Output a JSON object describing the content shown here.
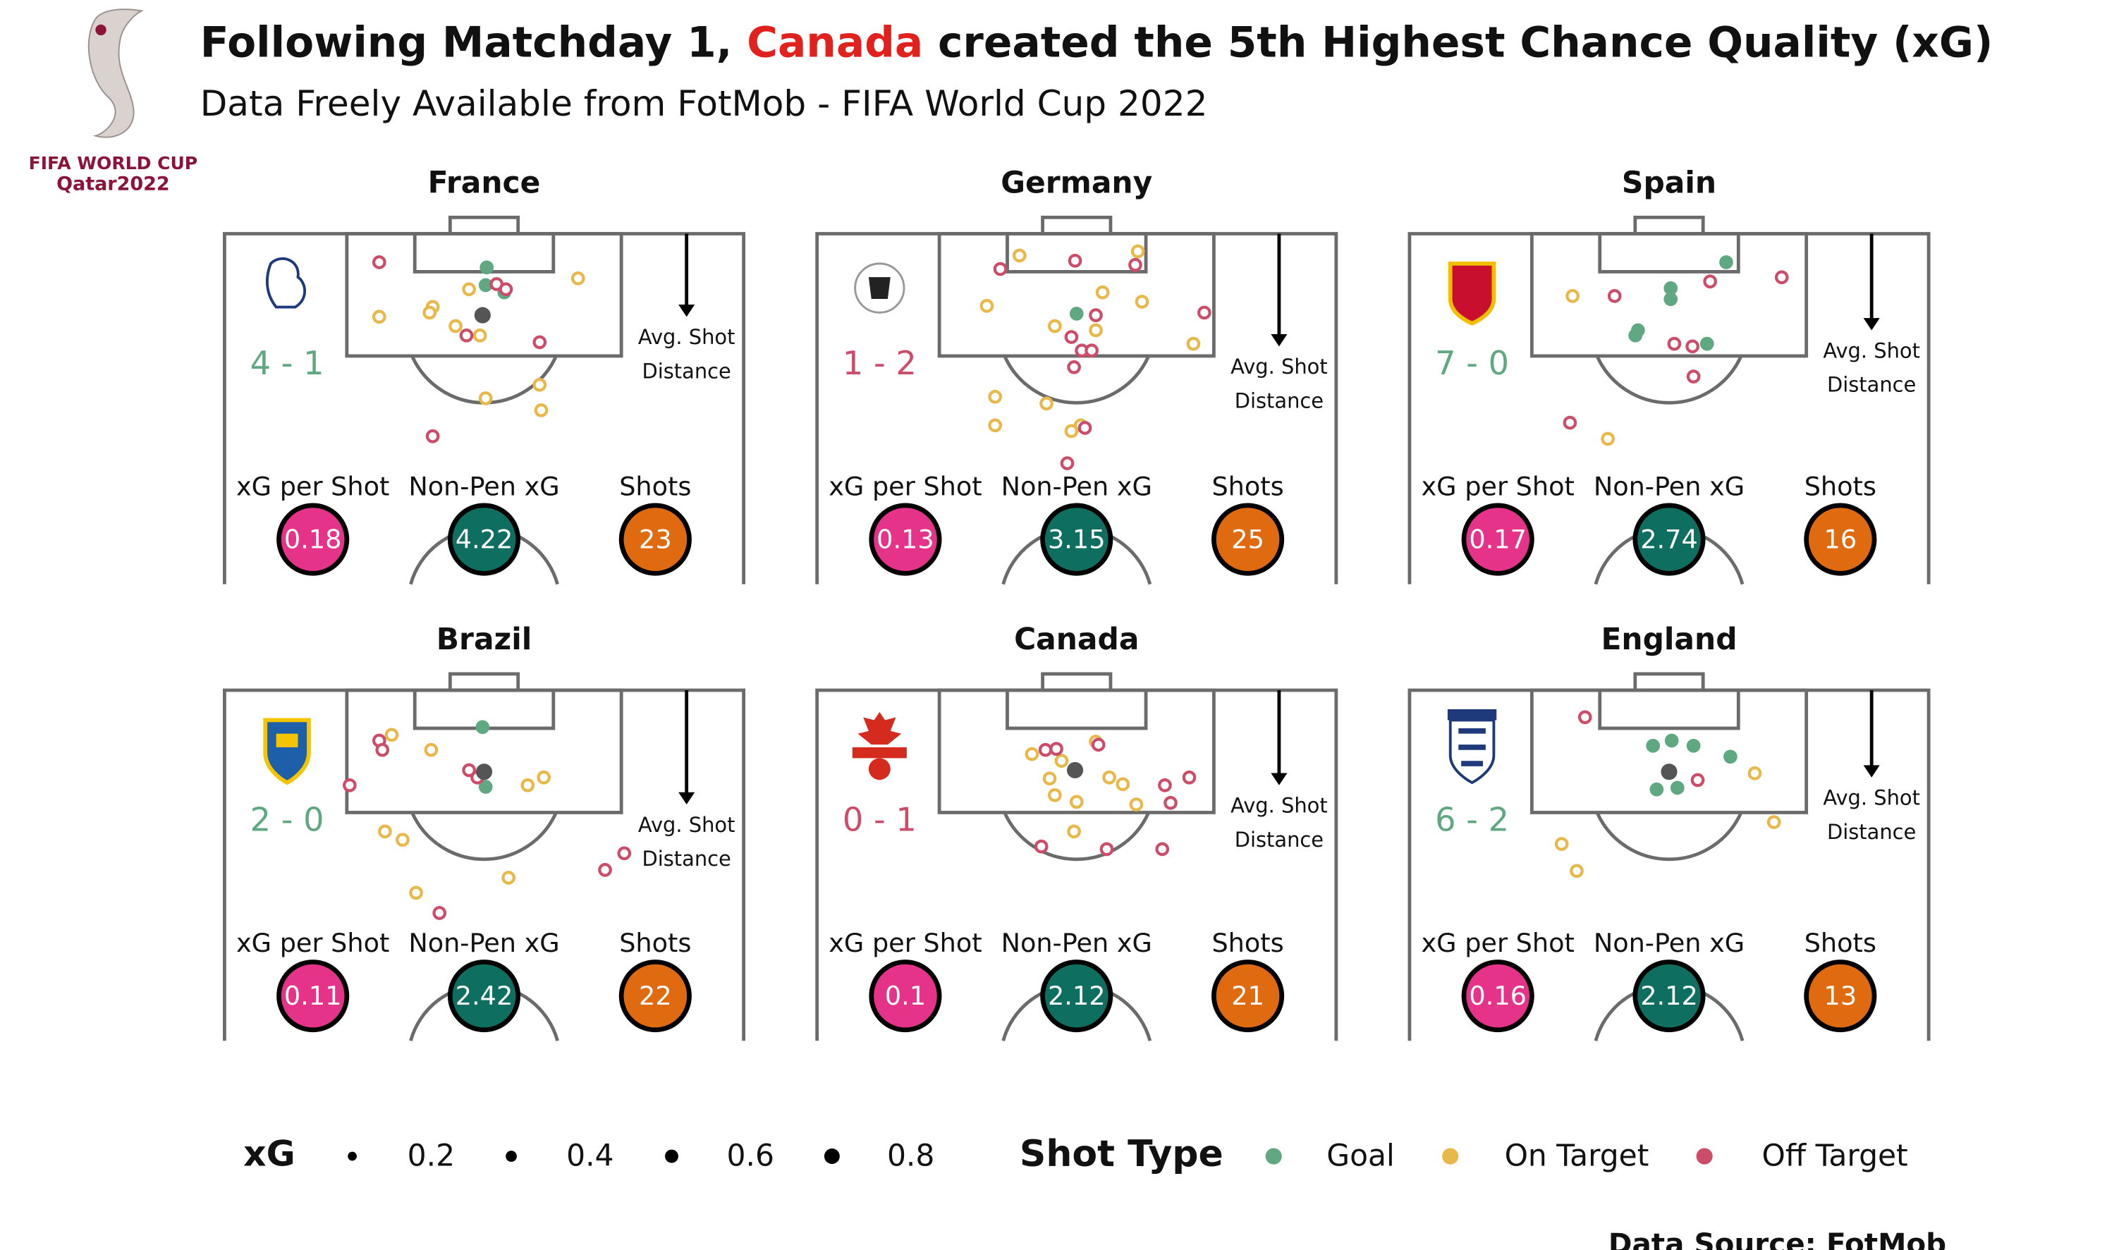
{
  "header": {
    "title_parts": [
      "Following Matchday 1, ",
      "Canada",
      " created the 5th Highest Chance Quality (xG)"
    ],
    "highlight_color": "#e0211d",
    "subtitle": "Data Freely Available from FotMob - FIFA World Cup 2022"
  },
  "logo": {
    "line1": "FIFA WORLD CUP",
    "line2": "Qatar2022"
  },
  "stat_labels": [
    "xG per Shot",
    "Non-Pen xG",
    "Shots"
  ],
  "stat_colors": [
    "#e6338a",
    "#0e6e5f",
    "#e06a10"
  ],
  "avg_label": [
    "Avg. Shot",
    "Distance"
  ],
  "chart_data": [
    {
      "type": "scatter",
      "title": "France",
      "score": "4 - 1",
      "score_color": "#5fa882",
      "xlim": [
        0,
        100
      ],
      "ylim": [
        0,
        67.5
      ],
      "avg_shot_distance": 16,
      "stats": [
        0.18,
        4.22,
        23
      ],
      "series": [
        {
          "name": "Goal",
          "color": "#5fa882",
          "x": [
            50.5,
            50.3,
            53.9
          ],
          "values": [
            6.5,
            9.9,
            11.3
          ]
        },
        {
          "name": "On Target",
          "color": "#e8b84a",
          "x": [
            47.1,
            40.1,
            39.5,
            29.8,
            68.1,
            44.5,
            60.7,
            50.3,
            61,
            49.2
          ],
          "values": [
            10.7,
            14.1,
            15.2,
            16,
            8.6,
            17.8,
            29.1,
            31.7,
            34,
            19.6
          ]
        },
        {
          "name": "Off Target",
          "color": "#cc4d6a",
          "x": [
            29.8,
            52.4,
            54.2,
            46.6,
            60.7,
            40.1
          ],
          "values": [
            5.5,
            9.7,
            10.7,
            19.6,
            20.9,
            39
          ]
        }
      ],
      "marker": {
        "color": "#555555",
        "x": [
          49.7
        ],
        "values": [
          15.7
        ]
      }
    },
    {
      "type": "scatter",
      "title": "Germany",
      "score": "1 - 2",
      "score_color": "#cc4d6a",
      "xlim": [
        0,
        100
      ],
      "ylim": [
        0,
        67.5
      ],
      "avg_shot_distance": 21.7,
      "stats": [
        0.13,
        3.15,
        25
      ],
      "series": [
        {
          "name": "Goal",
          "color": "#5fa882",
          "x": [
            50
          ],
          "values": [
            15.4
          ]
        },
        {
          "name": "On Target",
          "color": "#e8b84a",
          "x": [
            39,
            61.8,
            55,
            62.6,
            45.8,
            53.7,
            32.7,
            72.5,
            44.2,
            34.3,
            34.3,
            50.8,
            49
          ],
          "values": [
            4.2,
            3.4,
            11.3,
            13.1,
            17.8,
            18.6,
            13.9,
            21.2,
            32.7,
            31.4,
            36.9,
            36.9,
            38
          ]
        },
        {
          "name": "Off Target",
          "color": "#cc4d6a",
          "x": [
            49.7,
            35.3,
            61.3,
            53.7,
            74.6,
            49,
            51,
            52.9,
            49.5,
            48.2,
            51.6
          ],
          "values": [
            5.2,
            6.8,
            6,
            15.7,
            15.2,
            19.9,
            22.5,
            22.5,
            25.7,
            44.2,
            37.4
          ]
        }
      ]
    },
    {
      "type": "scatter",
      "title": "Spain",
      "score": "7 - 0",
      "score_color": "#5fa882",
      "xlim": [
        0,
        100
      ],
      "ylim": [
        0,
        67.5
      ],
      "avg_shot_distance": 18.6,
      "stats": [
        0.17,
        2.74,
        16
      ],
      "series": [
        {
          "name": "Goal",
          "color": "#5fa882",
          "x": [
            61,
            50.3,
            50.3,
            44,
            43.5,
            57.3
          ],
          "values": [
            5.5,
            10.5,
            12.6,
            18.6,
            19.6,
            21.2
          ]
        },
        {
          "name": "On Target",
          "color": "#e8b84a",
          "x": [
            31.4,
            38.2
          ],
          "values": [
            12,
            39.5
          ]
        },
        {
          "name": "Off Target",
          "color": "#cc4d6a",
          "x": [
            57.9,
            71.7,
            39.5,
            51,
            54.5,
            54.7,
            30.9
          ],
          "values": [
            9.2,
            8.4,
            12,
            21.2,
            21.7,
            27.5,
            36.4
          ]
        }
      ]
    },
    {
      "type": "scatter",
      "title": "Brazil",
      "score": "2 - 0",
      "score_color": "#5fa882",
      "xlim": [
        0,
        100
      ],
      "ylim": [
        0,
        67.5
      ],
      "avg_shot_distance": 22,
      "stats": [
        0.11,
        2.42,
        22
      ],
      "series": [
        {
          "name": "Goal",
          "color": "#5fa882",
          "x": [
            49.7,
            50.3
          ],
          "values": [
            7.1,
            18.6
          ]
        },
        {
          "name": "On Target",
          "color": "#e8b84a",
          "x": [
            32.2,
            39.8,
            58.4,
            61.5,
            30.9,
            34.3,
            54.7,
            36.9
          ],
          "values": [
            8.6,
            11.5,
            18.3,
            16.8,
            27.2,
            28.8,
            36.1,
            39
          ]
        },
        {
          "name": "Off Target",
          "color": "#cc4d6a",
          "x": [
            29.8,
            30.4,
            47.1,
            48.7,
            24.1,
            77,
            73.3,
            41.4
          ],
          "values": [
            9.7,
            11.5,
            15.4,
            16.8,
            18.3,
            31.4,
            34.6,
            42.9
          ]
        }
      ],
      "marker": {
        "color": "#555555",
        "x": [
          50
        ],
        "values": [
          15.7
        ]
      }
    },
    {
      "type": "scatter",
      "title": "Canada",
      "score": "0 - 1",
      "score_color": "#cc4d6a",
      "xlim": [
        0,
        100
      ],
      "ylim": [
        0,
        67.5
      ],
      "avg_shot_distance": 18.3,
      "stats": [
        0.1,
        2.12,
        21
      ],
      "series": [
        {
          "name": "Goal",
          "color": "#5fa882",
          "x": [],
          "values": []
        },
        {
          "name": "On Target",
          "color": "#e8b84a",
          "x": [
            53.7,
            41.4,
            47.1,
            44.8,
            56.3,
            45.8,
            58.9,
            50,
            49.5,
            61.5
          ],
          "values": [
            9.9,
            12.3,
            13.6,
            17,
            16.8,
            20.2,
            18.1,
            21.5,
            27.2,
            22
          ]
        },
        {
          "name": "Off Target",
          "color": "#cc4d6a",
          "x": [
            44,
            46.1,
            54.2,
            43.2,
            55.8,
            66.5,
            67,
            71.7,
            68.1
          ],
          "values": [
            11.5,
            11.3,
            10.5,
            30.1,
            30.6,
            30.6,
            18.3,
            16.8,
            21.7
          ]
        }
      ],
      "marker": {
        "color": "#555555",
        "x": [
          49.7
        ],
        "values": [
          15.4
        ]
      }
    },
    {
      "type": "scatter",
      "title": "England",
      "score": "6 - 2",
      "score_color": "#5fa882",
      "xlim": [
        0,
        100
      ],
      "ylim": [
        0,
        67.5
      ],
      "avg_shot_distance": 16.8,
      "stats": [
        0.16,
        2.12,
        13
      ],
      "series": [
        {
          "name": "Goal",
          "color": "#5fa882",
          "x": [
            46.9,
            50.5,
            54.7,
            61.8,
            51.6,
            47.6
          ],
          "values": [
            10.7,
            9.7,
            10.7,
            12.8,
            18.8,
            19.1
          ]
        },
        {
          "name": "On Target",
          "color": "#e8b84a",
          "x": [
            66.5,
            29.3,
            32.2,
            70.2
          ],
          "values": [
            16,
            29.6,
            34.8,
            25.4
          ]
        },
        {
          "name": "Off Target",
          "color": "#cc4d6a",
          "x": [
            33.8,
            55.5
          ],
          "values": [
            5.2,
            17.3
          ]
        }
      ],
      "marker": {
        "color": "#555555",
        "x": [
          50
        ],
        "values": [
          15.7
        ]
      }
    }
  ],
  "size_legend": {
    "title": "xG",
    "values": [
      0.2,
      0.4,
      0.6,
      0.8
    ]
  },
  "type_legend_title": "Shot Type",
  "source": "Data Source: FotMob"
}
